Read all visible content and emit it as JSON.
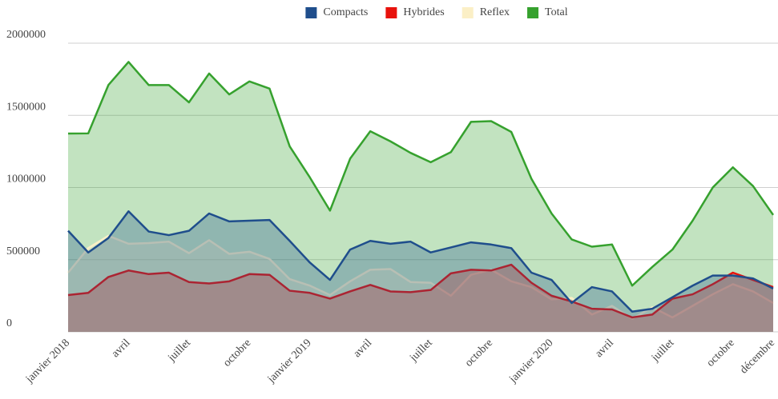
{
  "chart_data": {
    "type": "area",
    "categories": [
      "janvier 2018",
      null,
      null,
      "avril",
      null,
      null,
      "juillet",
      null,
      null,
      "octobre",
      null,
      null,
      "janvier 2019",
      null,
      null,
      "avril",
      null,
      null,
      "juillet",
      null,
      null,
      "octobre",
      null,
      null,
      "janvier 2020",
      null,
      null,
      "avril",
      null,
      null,
      "juillet",
      null,
      null,
      "octobre",
      null,
      "décembre"
    ],
    "series": [
      {
        "name": "Compacts",
        "color": "#1f4e8c",
        "values": [
          700000,
          550000,
          650000,
          835000,
          695000,
          670000,
          700000,
          820000,
          765000,
          770000,
          775000,
          630000,
          480000,
          360000,
          570000,
          630000,
          610000,
          625000,
          550000,
          585000,
          620000,
          605000,
          580000,
          410000,
          360000,
          200000,
          310000,
          280000,
          140000,
          160000,
          240000,
          320000,
          390000,
          390000,
          370000,
          300000
        ]
      },
      {
        "name": "Hybrides",
        "color": "#e8120c",
        "values": [
          255000,
          270000,
          380000,
          425000,
          400000,
          410000,
          345000,
          335000,
          350000,
          400000,
          395000,
          285000,
          270000,
          230000,
          280000,
          325000,
          280000,
          275000,
          290000,
          405000,
          430000,
          425000,
          465000,
          340000,
          250000,
          210000,
          160000,
          155000,
          100000,
          120000,
          230000,
          260000,
          330000,
          410000,
          360000,
          310000
        ]
      },
      {
        "name": "Reflex",
        "color": "#fbefc6",
        "values": [
          410000,
          580000,
          665000,
          610000,
          615000,
          625000,
          545000,
          635000,
          540000,
          555000,
          505000,
          365000,
          320000,
          255000,
          350000,
          430000,
          435000,
          345000,
          340000,
          250000,
          395000,
          430000,
          350000,
          310000,
          225000,
          235000,
          120000,
          180000,
          90000,
          170000,
          100000,
          180000,
          260000,
          330000,
          280000,
          200000
        ]
      },
      {
        "name": "Total",
        "color": "#36a12e",
        "values": [
          1374000,
          1375000,
          1710000,
          1870000,
          1710000,
          1710000,
          1590000,
          1790000,
          1645000,
          1735000,
          1685000,
          1285000,
          1070000,
          840000,
          1200000,
          1390000,
          1320000,
          1240000,
          1175000,
          1245000,
          1455000,
          1460000,
          1385000,
          1060000,
          820000,
          640000,
          590000,
          605000,
          320000,
          450000,
          570000,
          770000,
          1000000,
          1140000,
          1010000,
          810000
        ]
      }
    ],
    "ylim": [
      0,
      2000000
    ],
    "yticks": [
      0,
      500000,
      1000000,
      1500000,
      2000000
    ],
    "grid": true,
    "legend": "top"
  }
}
